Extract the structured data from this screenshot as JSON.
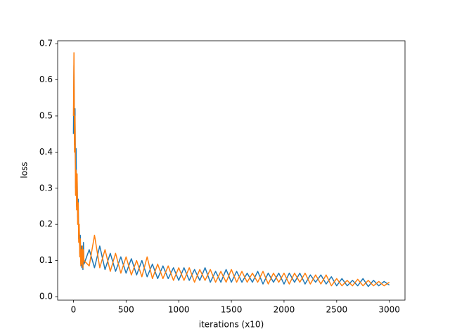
{
  "chart_data": {
    "type": "line",
    "xlabel": "iterations (x10)",
    "ylabel": "loss",
    "x": [
      0,
      5,
      10,
      15,
      20,
      25,
      30,
      35,
      40,
      45,
      50,
      55,
      60,
      65,
      70,
      75,
      80,
      85,
      90,
      95,
      100,
      150,
      200,
      250,
      300,
      350,
      400,
      450,
      500,
      550,
      600,
      650,
      700,
      750,
      800,
      850,
      900,
      950,
      1000,
      1050,
      1100,
      1150,
      1200,
      1250,
      1300,
      1350,
      1400,
      1450,
      1500,
      1550,
      1600,
      1650,
      1700,
      1750,
      1800,
      1850,
      1900,
      1950,
      2000,
      2050,
      2100,
      2150,
      2200,
      2250,
      2300,
      2350,
      2400,
      2450,
      2500,
      2550,
      2600,
      2650,
      2700,
      2750,
      2800,
      2850,
      2900,
      2950,
      3000
    ],
    "series": [
      {
        "color": "#1f77b4",
        "values": [
          0.45,
          0.64,
          0.42,
          0.52,
          0.3,
          0.41,
          0.25,
          0.33,
          0.22,
          0.27,
          0.16,
          0.19,
          0.12,
          0.17,
          0.09,
          0.14,
          0.08,
          0.13,
          0.075,
          0.15,
          0.09,
          0.13,
          0.08,
          0.14,
          0.075,
          0.12,
          0.07,
          0.11,
          0.065,
          0.105,
          0.06,
          0.1,
          0.055,
          0.09,
          0.05,
          0.085,
          0.05,
          0.08,
          0.045,
          0.08,
          0.045,
          0.075,
          0.045,
          0.08,
          0.04,
          0.07,
          0.04,
          0.075,
          0.04,
          0.07,
          0.04,
          0.065,
          0.04,
          0.07,
          0.035,
          0.065,
          0.04,
          0.065,
          0.035,
          0.065,
          0.04,
          0.065,
          0.035,
          0.06,
          0.04,
          0.06,
          0.035,
          0.055,
          0.03,
          0.05,
          0.03,
          0.045,
          0.03,
          0.05,
          0.028,
          0.045,
          0.03,
          0.042,
          0.032
        ]
      },
      {
        "color": "#ff7f0e",
        "values": [
          0.5,
          0.675,
          0.4,
          0.5,
          0.28,
          0.35,
          0.24,
          0.34,
          0.2,
          0.26,
          0.15,
          0.2,
          0.11,
          0.16,
          0.085,
          0.13,
          0.09,
          0.14,
          0.08,
          0.13,
          0.1,
          0.085,
          0.17,
          0.08,
          0.13,
          0.07,
          0.12,
          0.065,
          0.11,
          0.06,
          0.1,
          0.055,
          0.11,
          0.05,
          0.09,
          0.05,
          0.085,
          0.045,
          0.08,
          0.045,
          0.08,
          0.04,
          0.075,
          0.045,
          0.075,
          0.04,
          0.07,
          0.04,
          0.075,
          0.04,
          0.07,
          0.04,
          0.065,
          0.04,
          0.07,
          0.035,
          0.065,
          0.04,
          0.065,
          0.035,
          0.065,
          0.04,
          0.065,
          0.035,
          0.06,
          0.035,
          0.06,
          0.03,
          0.05,
          0.03,
          0.045,
          0.03,
          0.048,
          0.03,
          0.045,
          0.03,
          0.042,
          0.03,
          0.04
        ]
      }
    ],
    "xlim": [
      -149.95,
      3148.95
    ],
    "xticks": [
      0,
      500,
      1000,
      1500,
      2000,
      2500,
      3000
    ],
    "ylim": [
      -0.0097,
      0.708
    ],
    "yticks": [
      {
        "value": 0,
        "label": "0.0"
      },
      0.1,
      0.2,
      0.3,
      0.4,
      0.5,
      0.6,
      0.7
    ]
  }
}
